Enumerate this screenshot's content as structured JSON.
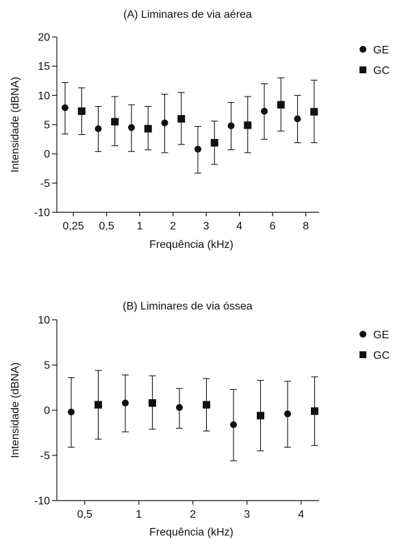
{
  "chart_data": [
    {
      "type": "scatter",
      "title": "(A) Liminares de via aérea",
      "xlabel": "Frequência (kHz)",
      "ylabel": "Intensidade (dBNA)",
      "ylim": [
        -10,
        20
      ],
      "yticks": [
        "20",
        "15",
        "10",
        "5",
        "0",
        "-5",
        "-10"
      ],
      "ytick_values": [
        20,
        15,
        10,
        5,
        0,
        -5,
        -10
      ],
      "categories": [
        "0,25",
        "0,5",
        "1",
        "2",
        "3",
        "4",
        "6",
        "8"
      ],
      "legend_position": "top-right",
      "grid": false,
      "series": [
        {
          "name": "GE",
          "marker": "circle",
          "values": [
            7.9,
            4.3,
            4.5,
            5.3,
            0.8,
            4.8,
            7.3,
            6.0
          ],
          "err_low": [
            3.4,
            0.4,
            0.4,
            0.2,
            -3.3,
            0.7,
            2.5,
            1.9
          ],
          "err_high": [
            12.2,
            8.1,
            8.4,
            10.2,
            4.7,
            8.8,
            12.0,
            10.0
          ]
        },
        {
          "name": "GC",
          "marker": "square",
          "values": [
            7.3,
            5.5,
            4.3,
            6.0,
            1.9,
            4.9,
            8.4,
            7.2
          ],
          "err_low": [
            3.3,
            1.4,
            0.7,
            1.6,
            -1.8,
            0.2,
            3.9,
            1.9
          ],
          "err_high": [
            11.3,
            9.8,
            8.1,
            10.5,
            5.6,
            9.8,
            13.0,
            12.6
          ]
        }
      ]
    },
    {
      "type": "scatter",
      "title": "(B) Liminares de via óssea",
      "xlabel": "Frequência (kHz)",
      "ylabel": "Intensidade (dBNA)",
      "ylim": [
        -10,
        10
      ],
      "yticks": [
        "10",
        "5",
        "0",
        "-5",
        "-10"
      ],
      "ytick_values": [
        10,
        5,
        0,
        -5,
        -10
      ],
      "categories": [
        "0,5",
        "1",
        "2",
        "3",
        "4"
      ],
      "legend_position": "top-right",
      "grid": false,
      "series": [
        {
          "name": "GE",
          "marker": "circle",
          "values": [
            -0.2,
            0.8,
            0.3,
            -1.6,
            -0.4
          ],
          "err_low": [
            -4.1,
            -2.4,
            -2.0,
            -5.6,
            -4.1
          ],
          "err_high": [
            3.6,
            3.9,
            2.4,
            2.3,
            3.2
          ]
        },
        {
          "name": "GC",
          "marker": "square",
          "values": [
            0.6,
            0.8,
            0.6,
            -0.6,
            -0.1
          ],
          "err_low": [
            -3.2,
            -2.1,
            -2.3,
            -4.5,
            -3.9
          ],
          "err_high": [
            4.4,
            3.8,
            3.5,
            3.3,
            3.7
          ]
        }
      ]
    }
  ]
}
